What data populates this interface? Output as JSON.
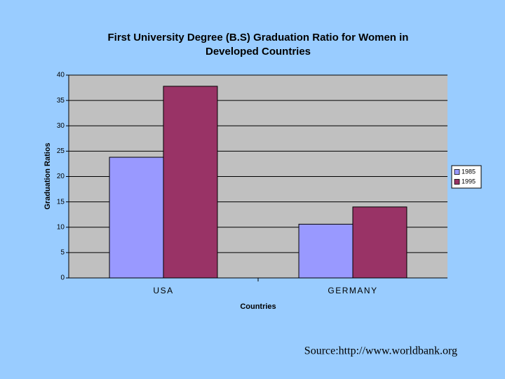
{
  "chart_data": {
    "type": "bar",
    "title": [
      "First University Degree (B.S) Graduation Ratio for Women in",
      "Developed Countries"
    ],
    "x_label": "Countries",
    "y_label": "Graduation Ratios",
    "categories": [
      "USA",
      "GERMANY"
    ],
    "series": [
      {
        "name": "1985",
        "color": "#9999ff",
        "values": [
          23.8,
          10.6
        ]
      },
      {
        "name": "1995",
        "color": "#993366",
        "values": [
          37.8,
          14
        ]
      }
    ],
    "ylim": [
      0,
      40
    ],
    "yticks": [
      0,
      5,
      10,
      15,
      20,
      25,
      30,
      35,
      40
    ],
    "grid": true,
    "legend": "right",
    "source": "Source:http://www.worldbank.org"
  }
}
